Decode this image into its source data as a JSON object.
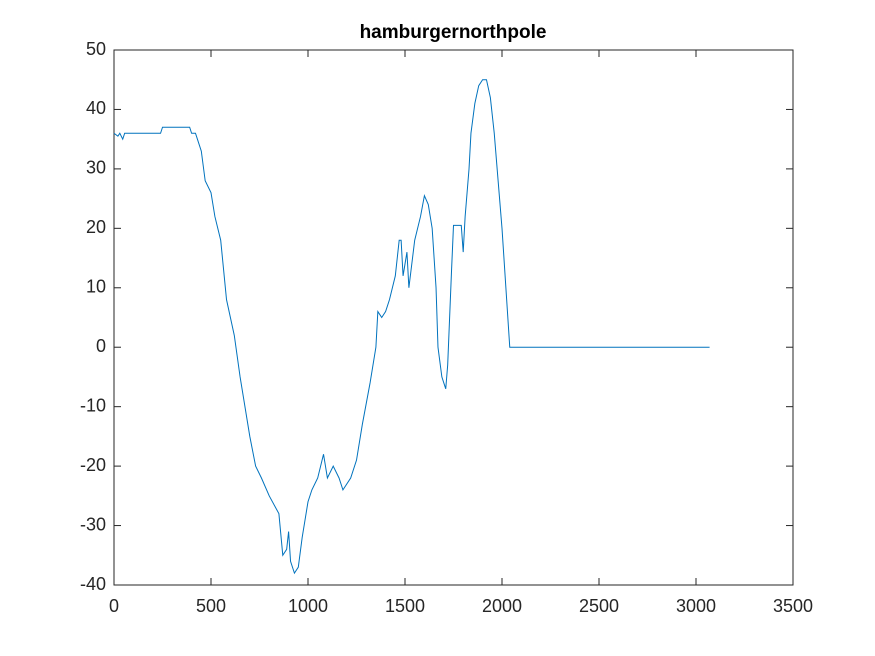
{
  "chart_data": {
    "type": "line",
    "title": "hamburgernorthpole",
    "x": [
      0,
      20,
      30,
      45,
      55,
      100,
      240,
      250,
      390,
      400,
      420,
      430,
      450,
      470,
      500,
      520,
      550,
      580,
      620,
      650,
      700,
      730,
      760,
      800,
      850,
      870,
      890,
      900,
      910,
      930,
      950,
      970,
      1000,
      1020,
      1050,
      1080,
      1100,
      1130,
      1160,
      1180,
      1220,
      1250,
      1280,
      1320,
      1350,
      1360,
      1380,
      1400,
      1420,
      1450,
      1470,
      1480,
      1490,
      1500,
      1510,
      1520,
      1550,
      1580,
      1600,
      1620,
      1640,
      1660,
      1670,
      1690,
      1710,
      1720,
      1740,
      1750,
      1790,
      1800,
      1810,
      1830,
      1840,
      1860,
      1880,
      1900,
      1920,
      1940,
      1960,
      1980,
      2000,
      2020,
      2040,
      3070
    ],
    "series": [
      {
        "color": "#0072bd",
        "values": [
          36,
          35.5,
          36,
          35,
          36,
          36,
          36,
          37,
          37,
          36,
          36,
          35,
          33,
          28,
          26,
          22,
          18,
          8,
          2,
          -5,
          -15,
          -20,
          -22,
          -25,
          -28,
          -35,
          -34,
          -31,
          -36,
          -38,
          -37,
          -32,
          -26,
          -24,
          -22,
          -18,
          -22,
          -20,
          -22,
          -24,
          -22,
          -19,
          -13,
          -6,
          0,
          6,
          5,
          6,
          8,
          12,
          18,
          18,
          12,
          14,
          16,
          10,
          18,
          22,
          25.5,
          24,
          20,
          10,
          0,
          -5,
          -7,
          -3,
          13,
          20.5,
          20.5,
          16,
          22,
          30,
          36,
          41,
          44,
          45,
          45,
          42,
          36,
          28,
          20,
          10,
          0,
          0
        ]
      }
    ],
    "xlim": [
      0,
      3500
    ],
    "xticks": [
      0,
      500,
      1000,
      1500,
      2000,
      2500,
      3000,
      3500
    ],
    "ylim": [
      -40,
      50
    ],
    "yticks": [
      -40,
      -30,
      -20,
      -10,
      0,
      10,
      20,
      30,
      40,
      50
    ]
  }
}
